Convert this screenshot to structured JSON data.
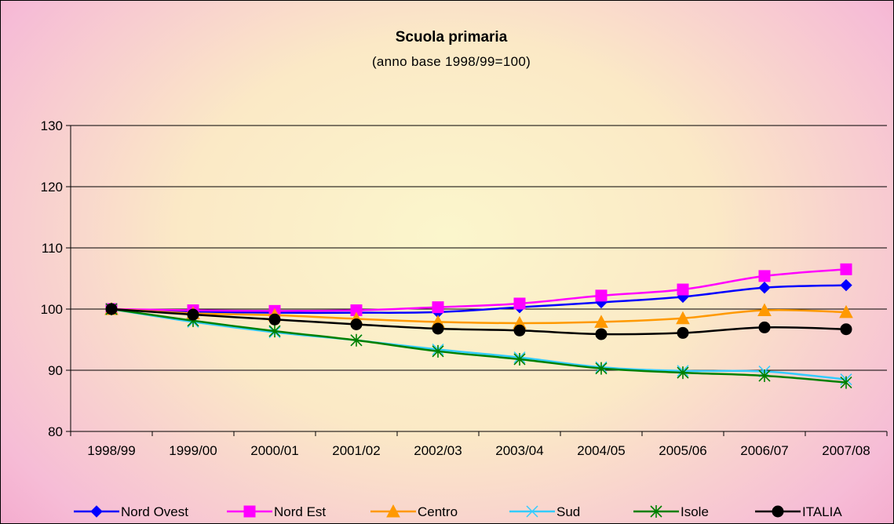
{
  "chart_data": {
    "type": "line",
    "title": "Scuola primaria",
    "subtitle": "(anno base 1998/99=100)",
    "xlabel": "",
    "ylabel": "",
    "ylim": [
      80,
      130
    ],
    "yticks": [
      80,
      90,
      100,
      110,
      120,
      130
    ],
    "grid": "horizontal",
    "legend_position": "bottom",
    "categories": [
      "1998/99",
      "1999/00",
      "2000/01",
      "2001/02",
      "2002/03",
      "2003/04",
      "2004/05",
      "2005/06",
      "2006/07",
      "2007/08"
    ],
    "series": [
      {
        "name": "Nord Ovest",
        "color": "#0000ff",
        "marker": "diamond",
        "values": [
          100,
          99.6,
          99.4,
          99.4,
          99.5,
          100.3,
          101.1,
          102.0,
          103.5,
          103.9
        ]
      },
      {
        "name": "Nord Est",
        "color": "#ff00ff",
        "marker": "square",
        "values": [
          100,
          99.8,
          99.7,
          99.8,
          100.3,
          100.9,
          102.2,
          103.2,
          105.4,
          106.5
        ]
      },
      {
        "name": "Centro",
        "color": "#ff9900",
        "marker": "triangle",
        "values": [
          100,
          99.3,
          99.0,
          98.4,
          97.9,
          97.7,
          97.9,
          98.5,
          99.8,
          99.5
        ]
      },
      {
        "name": "Sud",
        "color": "#33ccff",
        "marker": "x",
        "values": [
          100,
          97.9,
          96.2,
          94.9,
          93.4,
          92.1,
          90.5,
          89.9,
          89.8,
          88.5
        ]
      },
      {
        "name": "Isole",
        "color": "#008000",
        "marker": "star",
        "values": [
          100,
          98.1,
          96.4,
          94.9,
          93.1,
          91.8,
          90.3,
          89.6,
          89.1,
          88.0
        ]
      },
      {
        "name": "ITALIA",
        "color": "#000000",
        "marker": "circle",
        "values": [
          100,
          99.1,
          98.3,
          97.5,
          96.8,
          96.5,
          95.9,
          96.1,
          97.0,
          96.7
        ]
      }
    ]
  }
}
